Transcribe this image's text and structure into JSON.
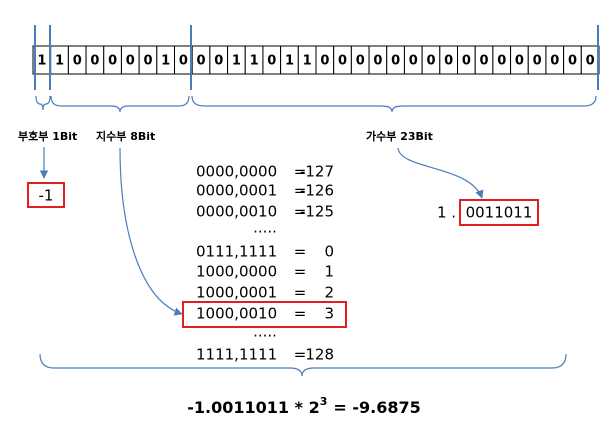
{
  "bits": [
    "1",
    "1",
    "0",
    "0",
    "0",
    "0",
    "0",
    "1",
    "0",
    "0",
    "0",
    "1",
    "1",
    "0",
    "1",
    "1",
    "0",
    "0",
    "0",
    "0",
    "0",
    "0",
    "0",
    "0",
    "0",
    "0",
    "0",
    "0",
    "0",
    "0",
    "0",
    "0"
  ],
  "fields": {
    "sign": "부호부 1Bit",
    "exponent": "지수부 8Bit",
    "mantissa": "가수부 23Bit"
  },
  "sign_value": "-1",
  "mantissa_prefix": "1 .",
  "mantissa_value": "0011011",
  "table": {
    "rows": [
      {
        "bits": "0000,0000",
        "sep": "=",
        "value": "-127"
      },
      {
        "bits": "0000,0001",
        "sep": "=",
        "value": "-126"
      },
      {
        "bits": "0000,0010",
        "sep": "=",
        "value": "-125"
      },
      {
        "dots": "....."
      },
      {
        "bits": "0111,1111",
        "sep": "=",
        "value": "0"
      },
      {
        "bits": "1000,0000",
        "sep": "=",
        "value": "1"
      },
      {
        "bits": "1000,0001",
        "sep": "=",
        "value": "2"
      },
      {
        "bits": "1000,0010",
        "sep": "=",
        "value": "3"
      },
      {
        "dots": "....."
      },
      {
        "bits": "1111,1111",
        "sep": "=",
        "value": "128"
      }
    ]
  },
  "formula": {
    "base": "-1.0011011 * 2",
    "exponent": "3",
    "result": "= -9.6875"
  }
}
